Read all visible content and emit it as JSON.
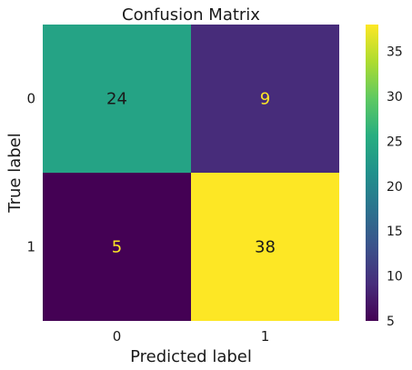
{
  "chart_data": {
    "type": "heatmap",
    "title": "Confusion Matrix",
    "xlabel": "Predicted label",
    "ylabel": "True label",
    "x_ticks": [
      "0",
      "1"
    ],
    "y_ticks": [
      "0",
      "1"
    ],
    "matrix": [
      [
        24,
        9
      ],
      [
        5,
        38
      ]
    ],
    "colormap": "viridis",
    "colorbar": {
      "vmin": 5,
      "vmax": 38,
      "ticks": [
        5,
        10,
        15,
        20,
        25,
        30,
        35
      ]
    },
    "text_colors": {
      "on_light": "#1a1a1a",
      "on_dark": "#fde725"
    },
    "grid": false
  }
}
